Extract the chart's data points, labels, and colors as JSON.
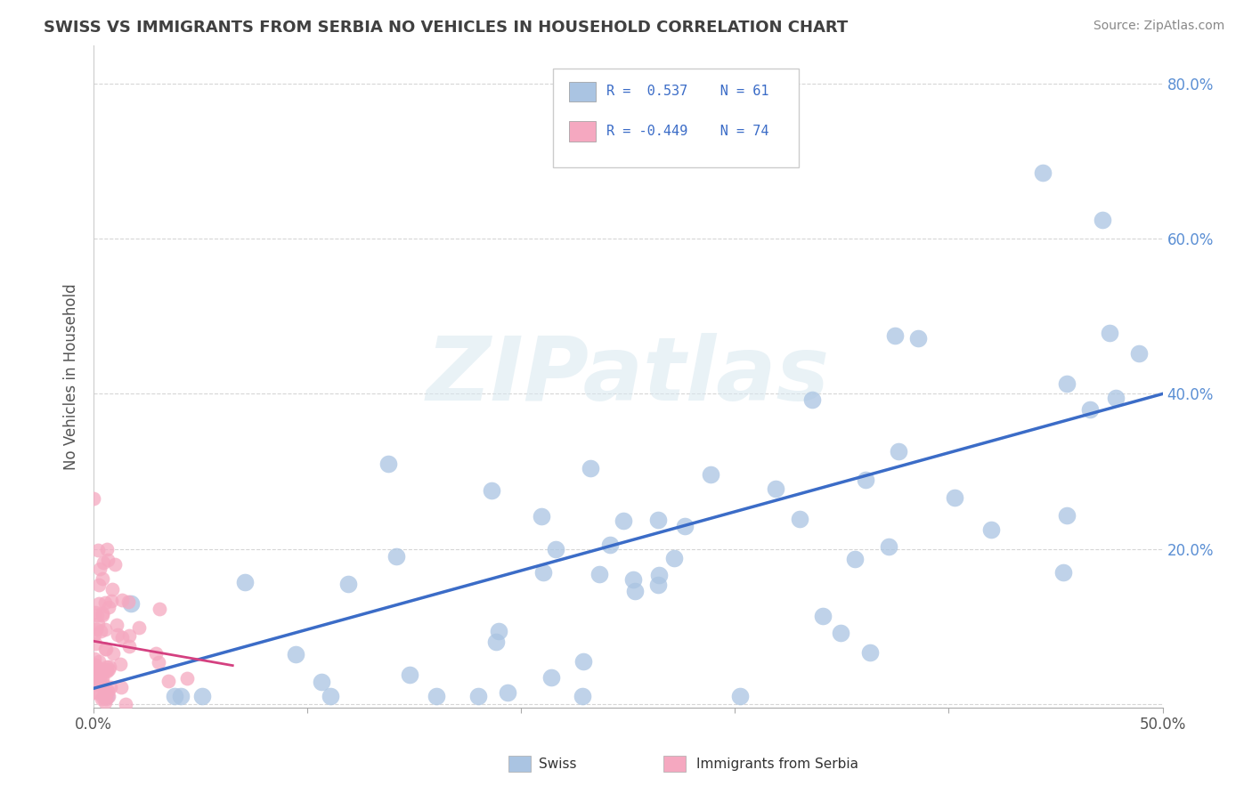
{
  "title": "SWISS VS IMMIGRANTS FROM SERBIA NO VEHICLES IN HOUSEHOLD CORRELATION CHART",
  "source": "Source: ZipAtlas.com",
  "ylabel": "No Vehicles in Household",
  "xlim": [
    0.0,
    0.5
  ],
  "ylim": [
    -0.005,
    0.85
  ],
  "swiss_R": 0.537,
  "swiss_N": 61,
  "serbia_R": -0.449,
  "serbia_N": 74,
  "swiss_color": "#aac4e2",
  "serbia_color": "#f5a8c0",
  "swiss_line_color": "#3b6cc7",
  "serbia_line_color": "#d44080",
  "legend_text_color": "#3b6cc7",
  "ytick_color": "#5b8fd4",
  "xtick_color": "#555555",
  "watermark_text": "ZIPatlas",
  "background_color": "#ffffff",
  "grid_color": "#cccccc",
  "title_color": "#404040",
  "source_color": "#888888"
}
